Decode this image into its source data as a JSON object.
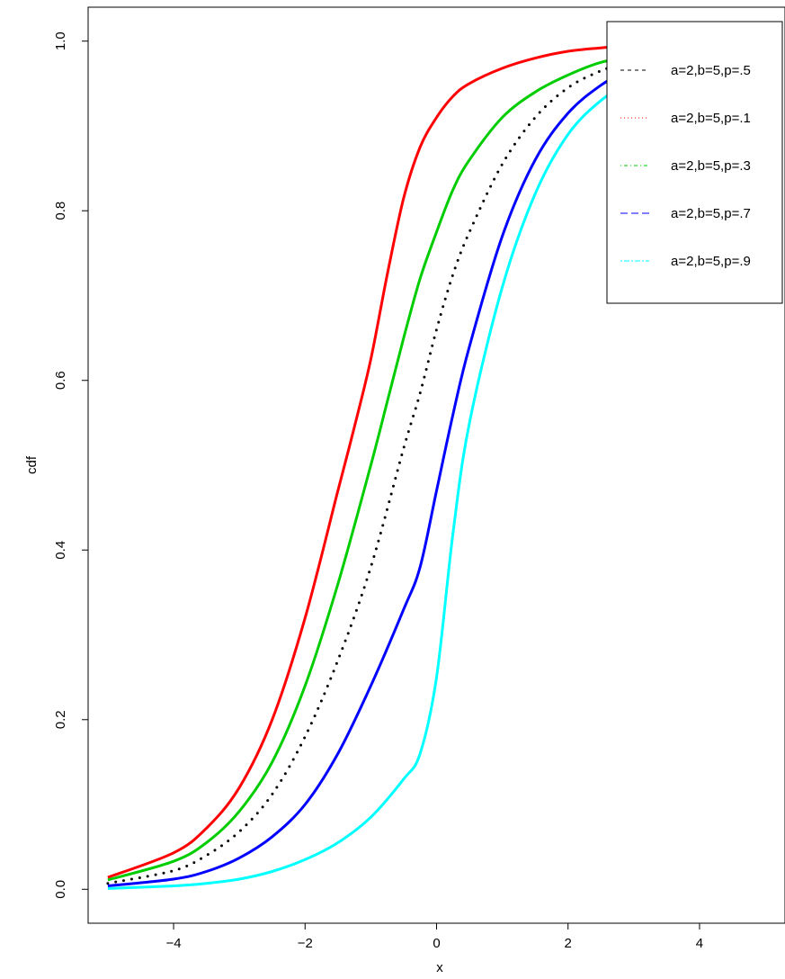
{
  "chart_data": {
    "type": "line",
    "title": "",
    "xlabel": "x",
    "ylabel": "cdf",
    "xlim": [
      -5.3,
      5.3
    ],
    "ylim": [
      -0.04,
      1.04
    ],
    "xticks": [
      -4,
      -2,
      0,
      2,
      4
    ],
    "xtick_labels": [
      "−4",
      "−2",
      "0",
      "2",
      "4"
    ],
    "yticks": [
      0.0,
      0.2,
      0.4,
      0.6,
      0.8,
      1.0
    ],
    "ytick_labels": [
      "0.0",
      "0.2",
      "0.4",
      "0.6",
      "0.8",
      "1.0"
    ],
    "grid": false,
    "legend_position": "top-right",
    "legend": [
      {
        "label": "a=2,b=5,p=.5",
        "color": "#000000",
        "dash": "dashed"
      },
      {
        "label": "a=2,b=5,p=.1",
        "color": "#ff0000",
        "dash": "dotted"
      },
      {
        "label": "a=2,b=5,p=.3",
        "color": "#00cd00",
        "dash": "dotdash"
      },
      {
        "label": "a=2,b=5,p=.7",
        "color": "#0000ff",
        "dash": "longdash"
      },
      {
        "label": "a=2,b=5,p=.9",
        "color": "#00ffff",
        "dash": "twodash"
      }
    ],
    "series": [
      {
        "color": "#ff0000",
        "style": "solid",
        "x": [
          -5,
          -4,
          -3.5,
          -3,
          -2.5,
          -2,
          -1.5,
          -1.25,
          -1,
          -0.75,
          -0.5,
          -0.25,
          0,
          0.25,
          0.5,
          1,
          1.5,
          2,
          2.5,
          3
        ],
        "y": [
          0.014,
          0.043,
          0.072,
          0.12,
          0.2,
          0.32,
          0.47,
          0.545,
          0.625,
          0.725,
          0.815,
          0.875,
          0.91,
          0.935,
          0.95,
          0.968,
          0.98,
          0.988,
          0.992,
          0.995
        ]
      },
      {
        "color": "#00cd00",
        "style": "solid",
        "x": [
          -5,
          -4,
          -3.5,
          -3,
          -2.5,
          -2,
          -1.5,
          -1,
          -0.75,
          -0.5,
          -0.25,
          0,
          0.25,
          0.5,
          1,
          1.5,
          2,
          2.5,
          3
        ],
        "y": [
          0.011,
          0.033,
          0.055,
          0.092,
          0.15,
          0.24,
          0.36,
          0.5,
          0.575,
          0.65,
          0.72,
          0.775,
          0.825,
          0.86,
          0.91,
          0.94,
          0.96,
          0.975,
          0.982
        ]
      },
      {
        "color": "#000000",
        "style": "dotted",
        "x": [
          -5,
          -4,
          -3.5,
          -3,
          -2.5,
          -2,
          -1.5,
          -1,
          -0.5,
          -0.25,
          0,
          0.25,
          0.5,
          1,
          1.5,
          2,
          2.5,
          3
        ],
        "y": [
          0.007,
          0.022,
          0.04,
          0.068,
          0.112,
          0.18,
          0.27,
          0.38,
          0.52,
          0.585,
          0.66,
          0.725,
          0.775,
          0.855,
          0.91,
          0.945,
          0.965,
          0.978
        ]
      },
      {
        "color": "#0000ff",
        "style": "solid",
        "x": [
          -5,
          -4,
          -3.5,
          -3,
          -2.5,
          -2,
          -1.5,
          -1,
          -0.5,
          -0.25,
          0,
          0.25,
          0.5,
          1,
          1.5,
          2,
          2.5,
          3
        ],
        "y": [
          0.004,
          0.012,
          0.021,
          0.037,
          0.062,
          0.1,
          0.16,
          0.24,
          0.33,
          0.38,
          0.47,
          0.56,
          0.64,
          0.77,
          0.86,
          0.915,
          0.948,
          0.97
        ]
      },
      {
        "color": "#00ffff",
        "style": "solid",
        "x": [
          -5,
          -4,
          -3.5,
          -3,
          -2.5,
          -2,
          -1.5,
          -1,
          -0.5,
          -0.25,
          0,
          0.25,
          0.5,
          1,
          1.5,
          2,
          2.5,
          3
        ],
        "y": [
          0.001,
          0.004,
          0.007,
          0.012,
          0.021,
          0.035,
          0.055,
          0.085,
          0.13,
          0.16,
          0.25,
          0.42,
          0.55,
          0.71,
          0.82,
          0.89,
          0.93,
          0.955
        ]
      }
    ]
  }
}
